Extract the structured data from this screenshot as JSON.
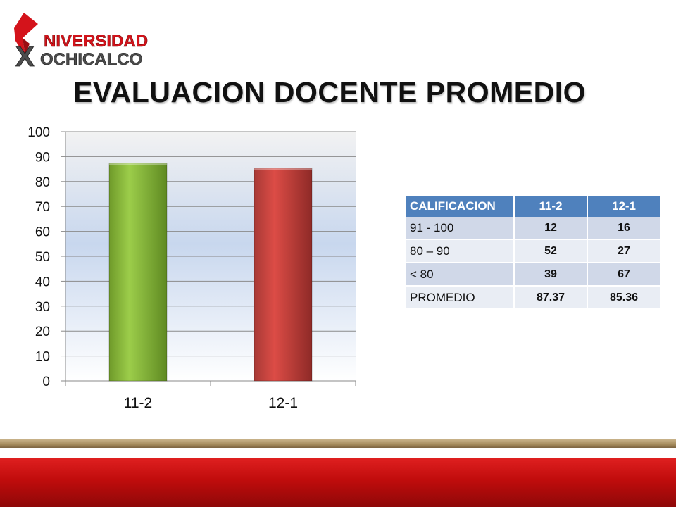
{
  "logo": {
    "name": "Universidad Xochicalco",
    "text_top": "NIVERSIDAD",
    "text_bottom_initial": "X",
    "text_bottom": "OCHICALCO",
    "colors": {
      "red": "#d4131b",
      "gray": "#4d4d4d"
    }
  },
  "title": "EVALUACION DOCENTE PROMEDIO",
  "chart_data": {
    "type": "bar",
    "categories": [
      "11-2",
      "12-1"
    ],
    "values": [
      87.37,
      85.36
    ],
    "colors": [
      "#8cc63f",
      "#c0504d"
    ],
    "ylim": [
      0,
      100
    ],
    "yticks": [
      0,
      10,
      20,
      30,
      40,
      50,
      60,
      70,
      80,
      90,
      100
    ],
    "grid": true,
    "title": "",
    "xlabel": "",
    "ylabel": ""
  },
  "table": {
    "headers": [
      "CALIFICACION",
      "11-2",
      "12-1"
    ],
    "rows": [
      {
        "label": "91 - 100",
        "v1": "12",
        "v2": "16"
      },
      {
        "label": "80 – 90",
        "v1": "52",
        "v2": "27"
      },
      {
        "label": "< 80",
        "v1": "39",
        "v2": "67"
      },
      {
        "label": "PROMEDIO",
        "v1": "87.37",
        "v2": "85.36"
      }
    ],
    "colors": {
      "header": "#4f81bd",
      "row_odd": "#d0d8e8",
      "row_even": "#e9edf4"
    }
  },
  "footer": {
    "colors": {
      "tan": "#b49a6a",
      "red": "#c8102e"
    }
  }
}
